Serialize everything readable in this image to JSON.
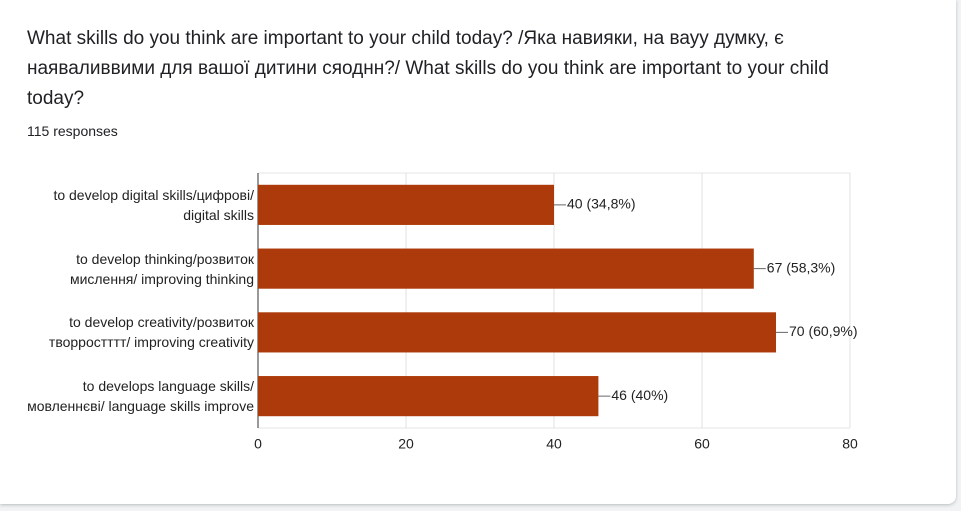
{
  "chart_data": {
    "type": "bar",
    "orientation": "horizontal",
    "title": "What skills do you think are important to your child today? /Яка навияки, на вауу думку, є наяваливвими для вашої дитини сяоднн?/ What skills do you think are important to your child today?",
    "subtitle": "115 responses",
    "categories": [
      "to develop digital skills/цифрові/ digital skills",
      "to develop thinking/розвиток мислення/ improving thinking",
      "to develop creativity/розвиток творростттт/ improving creativity",
      "to develops language skills/ мовленнєві/ language skills improve"
    ],
    "values": [
      40,
      67,
      70,
      46
    ],
    "value_labels": [
      "40 (34,8%)",
      "67 (58,3%)",
      "70 (60,9%)",
      "46 (40%)"
    ],
    "color": "#ad3a0a",
    "xlim": [
      0,
      80
    ],
    "xticks": [
      0,
      20,
      40,
      60,
      80
    ],
    "grid": true
  }
}
